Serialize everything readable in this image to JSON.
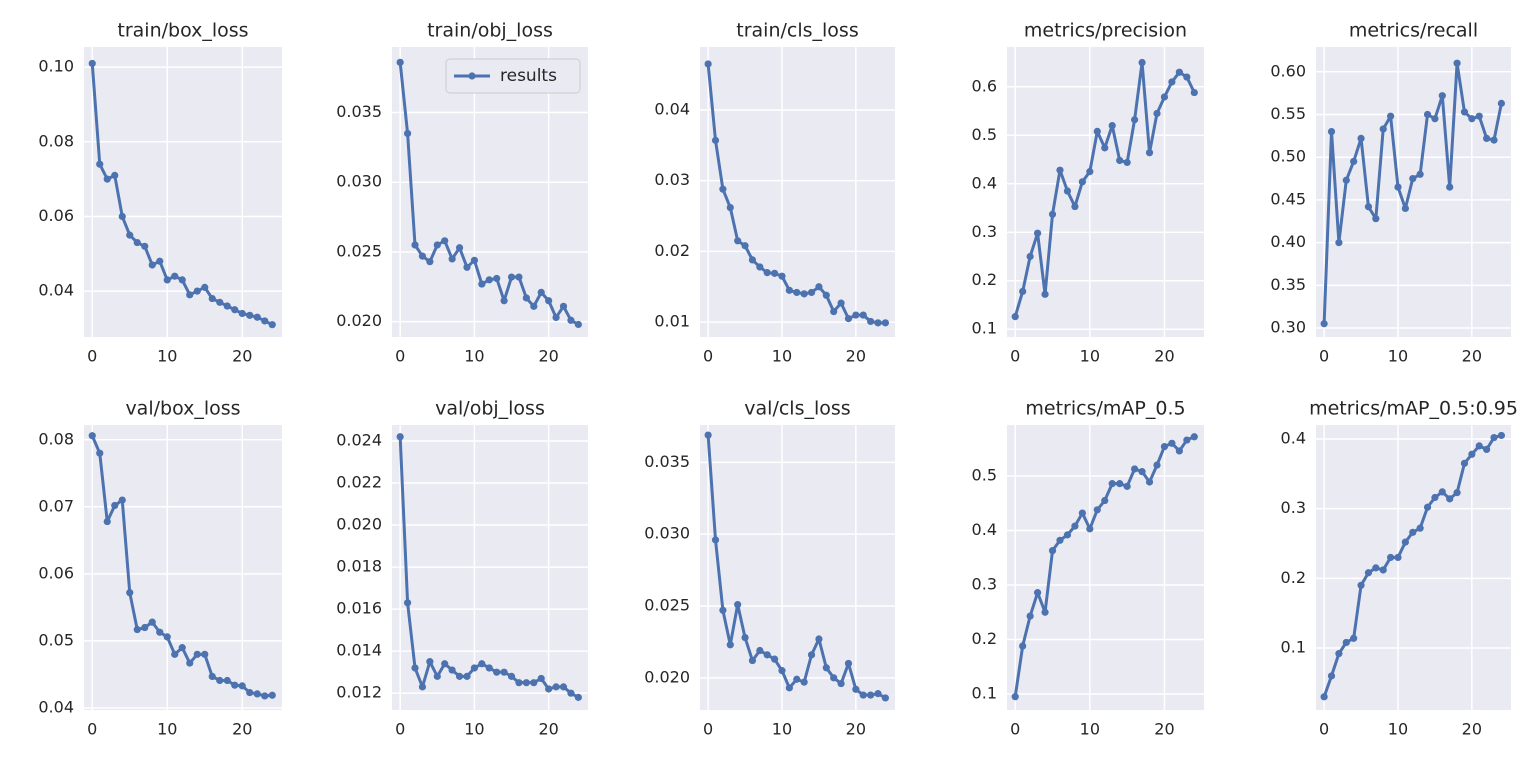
{
  "chart_data": [
    {
      "type": "line",
      "title": "train/box_loss",
      "x": [
        0,
        1,
        2,
        3,
        4,
        5,
        6,
        7,
        8,
        9,
        10,
        11,
        12,
        13,
        14,
        15,
        16,
        17,
        18,
        19,
        20,
        21,
        22,
        23,
        24
      ],
      "series": [
        {
          "color": "#4c72b0",
          "values": [
            0.101,
            0.074,
            0.07,
            0.071,
            0.06,
            0.055,
            0.053,
            0.052,
            0.047,
            0.048,
            0.043,
            0.044,
            0.043,
            0.039,
            0.04,
            0.041,
            0.038,
            0.037,
            0.036,
            0.035,
            0.034,
            0.0335,
            0.033,
            0.032,
            0.031
          ]
        }
      ],
      "xlim": [
        -1.1,
        25.3
      ],
      "ylim": [
        0.0277,
        0.1054
      ],
      "xticks": [
        0,
        10,
        20
      ],
      "yticks": [
        {
          "value": 0.04,
          "label": "0.04"
        },
        {
          "value": 0.06,
          "label": "0.06"
        },
        {
          "value": 0.08,
          "label": "0.08"
        },
        {
          "value": 0.1,
          "label": "0.10"
        }
      ],
      "grid": true
    },
    {
      "type": "line",
      "title": "train/obj_loss",
      "x": [
        0,
        1,
        2,
        3,
        4,
        5,
        6,
        7,
        8,
        9,
        10,
        11,
        12,
        13,
        14,
        15,
        16,
        17,
        18,
        19,
        20,
        21,
        22,
        23,
        24
      ],
      "series": [
        {
          "name": "results",
          "color": "#4c72b0",
          "values": [
            0.0386,
            0.0335,
            0.0255,
            0.0247,
            0.0243,
            0.0255,
            0.0258,
            0.0245,
            0.0253,
            0.0239,
            0.0244,
            0.0227,
            0.023,
            0.0231,
            0.0215,
            0.0232,
            0.0232,
            0.0217,
            0.0211,
            0.0221,
            0.0215,
            0.0203,
            0.0211,
            0.0201,
            0.0198
          ]
        }
      ],
      "xlim": [
        -1.1,
        25.3
      ],
      "ylim": [
        0.0189,
        0.0397
      ],
      "xticks": [
        0,
        10,
        20
      ],
      "yticks": [
        {
          "value": 0.02,
          "label": "0.020"
        },
        0.025,
        {
          "value": 0.03,
          "label": "0.030"
        },
        0.035
      ],
      "grid": true,
      "legend": "upper right"
    },
    {
      "type": "line",
      "title": "train/cls_loss",
      "x": [
        0,
        1,
        2,
        3,
        4,
        5,
        6,
        7,
        8,
        9,
        10,
        11,
        12,
        13,
        14,
        15,
        16,
        17,
        18,
        19,
        20,
        21,
        22,
        23,
        24
      ],
      "series": [
        {
          "color": "#4c72b0",
          "values": [
            0.0465,
            0.0357,
            0.0288,
            0.0262,
            0.0215,
            0.0208,
            0.0188,
            0.0178,
            0.017,
            0.0169,
            0.0165,
            0.0145,
            0.0142,
            0.014,
            0.0142,
            0.015,
            0.0138,
            0.0115,
            0.0127,
            0.0105,
            0.011,
            0.011,
            0.0101,
            0.0099,
            0.0099
          ]
        }
      ],
      "xlim": [
        -1.1,
        25.3
      ],
      "ylim": [
        0.0079,
        0.0489
      ],
      "xticks": [
        0,
        10,
        20
      ],
      "yticks": [
        0.01,
        0.02,
        0.03,
        0.04
      ],
      "grid": true
    },
    {
      "type": "line",
      "title": "metrics/precision",
      "x": [
        0,
        1,
        2,
        3,
        4,
        5,
        6,
        7,
        8,
        9,
        10,
        11,
        12,
        13,
        14,
        15,
        16,
        17,
        18,
        19,
        20,
        21,
        22,
        23,
        24
      ],
      "series": [
        {
          "color": "#4c72b0",
          "values": [
            0.126,
            0.178,
            0.25,
            0.298,
            0.172,
            0.337,
            0.428,
            0.385,
            0.353,
            0.404,
            0.425,
            0.508,
            0.474,
            0.52,
            0.448,
            0.444,
            0.532,
            0.65,
            0.464,
            0.545,
            0.579,
            0.61,
            0.63,
            0.62,
            0.588
          ]
        }
      ],
      "xlim": [
        -1.1,
        25.3
      ],
      "ylim": [
        0.084,
        0.682
      ],
      "xticks": [
        0,
        10,
        20
      ],
      "yticks": [
        0.1,
        0.2,
        0.3,
        0.4,
        0.5,
        0.6
      ],
      "grid": true
    },
    {
      "type": "line",
      "title": "metrics/recall",
      "x": [
        0,
        1,
        2,
        3,
        4,
        5,
        6,
        7,
        8,
        9,
        10,
        11,
        12,
        13,
        14,
        15,
        16,
        17,
        18,
        19,
        20,
        21,
        22,
        23,
        24
      ],
      "series": [
        {
          "color": "#4c72b0",
          "values": [
            0.305,
            0.53,
            0.4,
            0.473,
            0.495,
            0.522,
            0.442,
            0.428,
            0.533,
            0.548,
            0.465,
            0.44,
            0.475,
            0.48,
            0.55,
            0.545,
            0.572,
            0.465,
            0.61,
            0.553,
            0.545,
            0.548,
            0.522,
            0.52,
            0.563
          ]
        }
      ],
      "xlim": [
        -1.1,
        25.3
      ],
      "ylim": [
        0.2895,
        0.629
      ],
      "xticks": [
        0,
        10,
        20
      ],
      "yticks": [
        {
          "value": 0.3,
          "label": "0.30"
        },
        0.35,
        {
          "value": 0.4,
          "label": "0.40"
        },
        0.45,
        {
          "value": 0.5,
          "label": "0.50"
        },
        0.55,
        {
          "value": 0.6,
          "label": "0.60"
        }
      ],
      "grid": true
    },
    {
      "type": "line",
      "title": "val/box_loss",
      "x": [
        0,
        1,
        2,
        3,
        4,
        5,
        6,
        7,
        8,
        9,
        10,
        11,
        12,
        13,
        14,
        15,
        16,
        17,
        18,
        19,
        20,
        21,
        22,
        23,
        24
      ],
      "series": [
        {
          "color": "#4c72b0",
          "values": [
            0.0806,
            0.078,
            0.0678,
            0.0702,
            0.071,
            0.0572,
            0.0517,
            0.052,
            0.0528,
            0.0513,
            0.0506,
            0.048,
            0.049,
            0.0467,
            0.048,
            0.048,
            0.0447,
            0.0441,
            0.0441,
            0.0434,
            0.0433,
            0.0423,
            0.0421,
            0.0418,
            0.0419
          ]
        }
      ],
      "xlim": [
        -1.1,
        25.3
      ],
      "ylim": [
        0.0397,
        0.0822
      ],
      "xticks": [
        0,
        10,
        20
      ],
      "yticks": [
        0.04,
        0.05,
        0.06,
        0.07,
        0.08
      ],
      "grid": true
    },
    {
      "type": "line",
      "title": "val/obj_loss",
      "x": [
        0,
        1,
        2,
        3,
        4,
        5,
        6,
        7,
        8,
        9,
        10,
        11,
        12,
        13,
        14,
        15,
        16,
        17,
        18,
        19,
        20,
        21,
        22,
        23,
        24
      ],
      "series": [
        {
          "color": "#4c72b0",
          "values": [
            0.0242,
            0.0163,
            0.0132,
            0.0123,
            0.0135,
            0.0128,
            0.0134,
            0.0131,
            0.0128,
            0.0128,
            0.0132,
            0.0134,
            0.0132,
            0.013,
            0.013,
            0.0128,
            0.0125,
            0.0125,
            0.0125,
            0.0127,
            0.0122,
            0.0123,
            0.0123,
            0.012,
            0.0118
          ]
        }
      ],
      "xlim": [
        -1.1,
        25.3
      ],
      "ylim": [
        0.0112,
        0.02476
      ],
      "xticks": [
        0,
        10,
        20
      ],
      "yticks": [
        0.012,
        0.014,
        0.016,
        0.018,
        {
          "value": 0.02,
          "label": "0.020"
        },
        0.022,
        0.024
      ],
      "grid": true
    },
    {
      "type": "line",
      "title": "val/cls_loss",
      "x": [
        0,
        1,
        2,
        3,
        4,
        5,
        6,
        7,
        8,
        9,
        10,
        11,
        12,
        13,
        14,
        15,
        16,
        17,
        18,
        19,
        20,
        21,
        22,
        23,
        24
      ],
      "series": [
        {
          "color": "#4c72b0",
          "values": [
            0.0369,
            0.0296,
            0.0247,
            0.0223,
            0.0251,
            0.0228,
            0.0212,
            0.0219,
            0.0216,
            0.0213,
            0.0205,
            0.0193,
            0.0199,
            0.0197,
            0.0216,
            0.0227,
            0.0207,
            0.02,
            0.0196,
            0.021,
            0.0192,
            0.0188,
            0.0188,
            0.0189,
            0.0186
          ]
        }
      ],
      "xlim": [
        -1.1,
        25.3
      ],
      "ylim": [
        0.01776,
        0.0376
      ],
      "xticks": [
        0,
        10,
        20
      ],
      "yticks": [
        {
          "value": 0.02,
          "label": "0.020"
        },
        0.025,
        {
          "value": 0.03,
          "label": "0.030"
        },
        0.035
      ],
      "grid": true
    },
    {
      "type": "line",
      "title": "metrics/mAP_0.5",
      "x": [
        0,
        1,
        2,
        3,
        4,
        5,
        6,
        7,
        8,
        9,
        10,
        11,
        12,
        13,
        14,
        15,
        16,
        17,
        18,
        19,
        20,
        21,
        22,
        23,
        24
      ],
      "series": [
        {
          "color": "#4c72b0",
          "values": [
            0.095,
            0.188,
            0.243,
            0.286,
            0.25,
            0.363,
            0.382,
            0.392,
            0.408,
            0.432,
            0.403,
            0.438,
            0.455,
            0.486,
            0.486,
            0.481,
            0.513,
            0.508,
            0.489,
            0.52,
            0.554,
            0.56,
            0.546,
            0.566,
            0.572
          ]
        }
      ],
      "xlim": [
        -1.1,
        25.3
      ],
      "ylim": [
        0.0706,
        0.5936
      ],
      "xticks": [
        0,
        10,
        20
      ],
      "yticks": [
        0.1,
        0.2,
        0.3,
        0.4,
        0.5
      ],
      "grid": true
    },
    {
      "type": "line",
      "title": "metrics/mAP_0.5:0.95",
      "x": [
        0,
        1,
        2,
        3,
        4,
        5,
        6,
        7,
        8,
        9,
        10,
        11,
        12,
        13,
        14,
        15,
        16,
        17,
        18,
        19,
        20,
        21,
        22,
        23,
        24
      ],
      "series": [
        {
          "color": "#4c72b0",
          "values": [
            0.03,
            0.06,
            0.092,
            0.108,
            0.114,
            0.19,
            0.208,
            0.215,
            0.212,
            0.23,
            0.23,
            0.252,
            0.266,
            0.272,
            0.302,
            0.316,
            0.324,
            0.314,
            0.323,
            0.365,
            0.378,
            0.39,
            0.385,
            0.402,
            0.405
          ]
        }
      ],
      "xlim": [
        -1.1,
        25.3
      ],
      "ylim": [
        0.0111,
        0.42
      ],
      "xticks": [
        0,
        10,
        20
      ],
      "yticks": [
        0.1,
        0.2,
        0.3,
        0.4
      ],
      "grid": true
    }
  ]
}
